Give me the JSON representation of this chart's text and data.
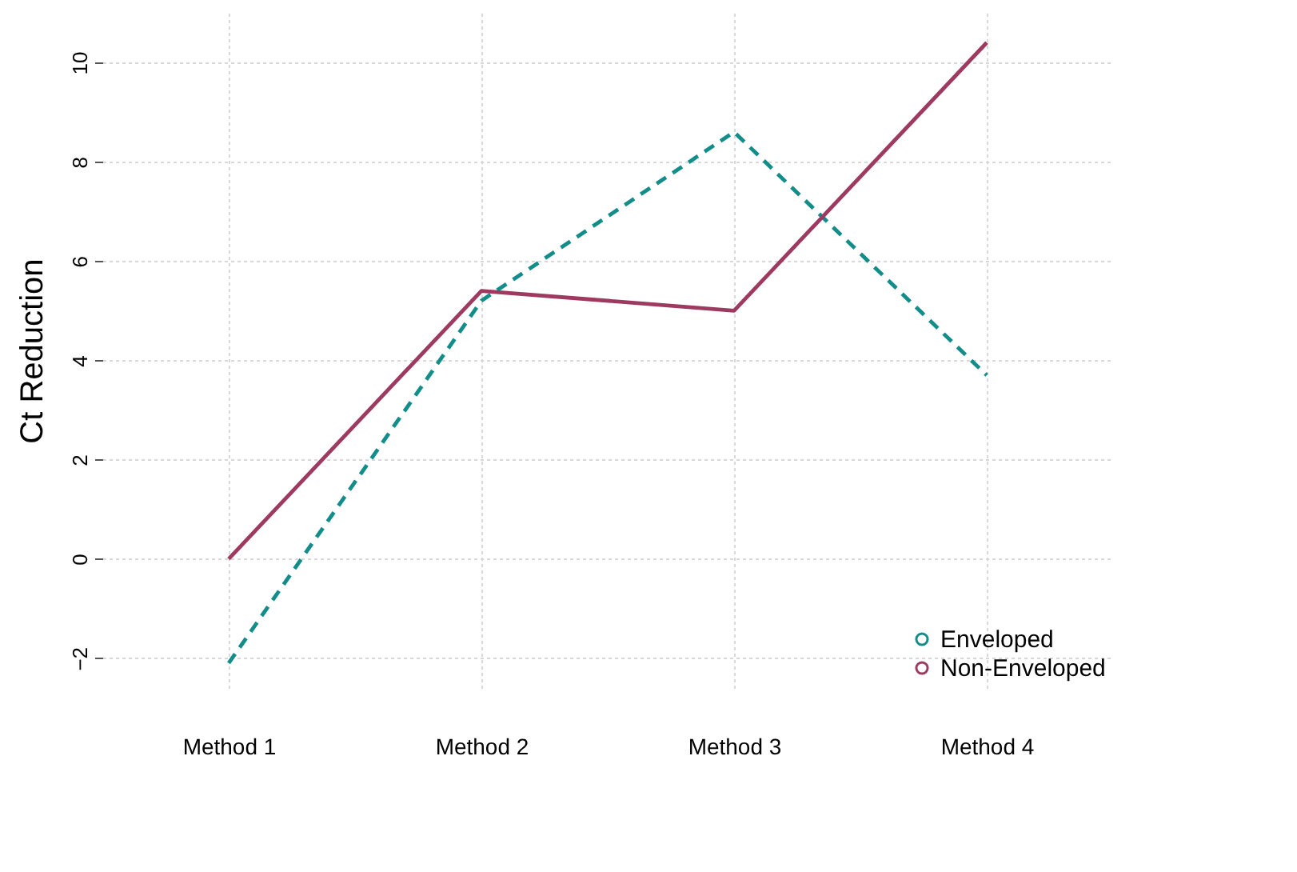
{
  "chart_data": {
    "type": "line",
    "ylabel": "Ct Reduction",
    "categories": [
      "Method 1",
      "Method 2",
      "Method 3",
      "Method 4"
    ],
    "series": [
      {
        "name": "Enveloped",
        "color": "#138d8a",
        "values": [
          -2.1,
          5.2,
          8.6,
          3.7
        ],
        "line_style": "dashed"
      },
      {
        "name": "Non-Enveloped",
        "color": "#9e3a60",
        "values": [
          0.0,
          5.4,
          5.0,
          10.4
        ],
        "line_style": "solid"
      }
    ],
    "ylim": [
      -2.6,
      11
    ],
    "yticks": [
      -2,
      0,
      2,
      4,
      6,
      8,
      10
    ],
    "grid": true,
    "legend": "bottom right",
    "marker": "none"
  }
}
